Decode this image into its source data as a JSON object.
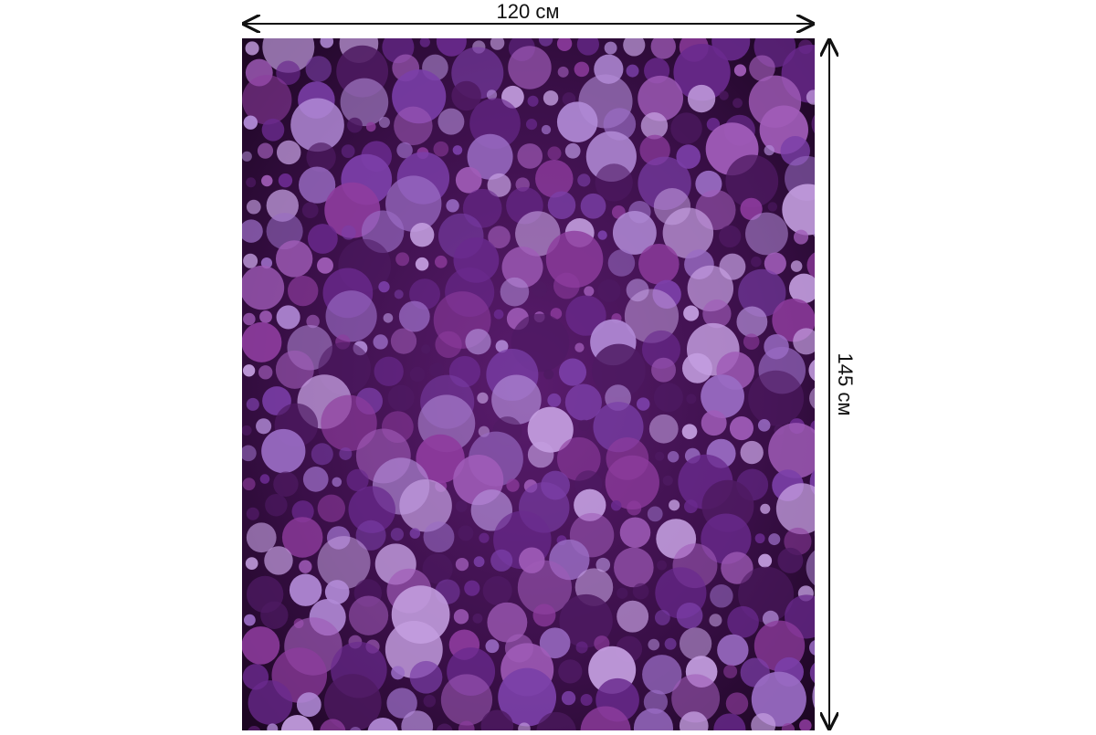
{
  "dimensions": {
    "width_label": "120 см",
    "height_label": "145 см"
  }
}
